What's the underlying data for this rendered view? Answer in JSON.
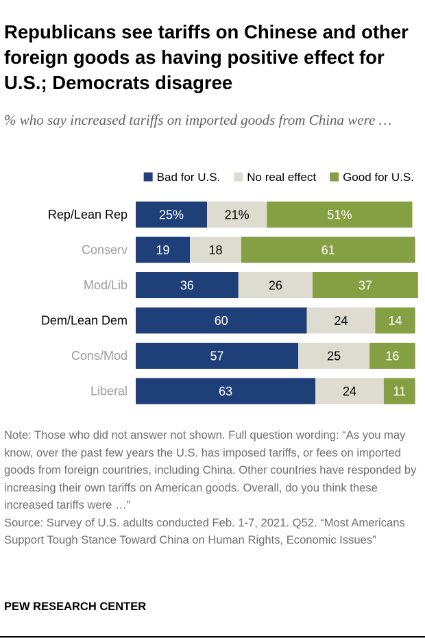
{
  "title": "Republicans see tariffs on Chinese and other foreign goods as having positive effect for U.S.; Democrats disagree",
  "subtitle": "% who say increased tariffs on imported goods from China were …",
  "note": "Note: Those who did not answer not shown. Full question wording: “As you may know, over the past few years the U.S. has imposed tariffs, or fees on imported goods from foreign countries, including China. Other countries have responded by increasing their own tariffs on American goods. Overall, do you think these increased tariffs were …”",
  "source": "Source: Survey of U.S. adults conducted Feb. 1-7, 2021. Q52. “Most Americans Support Tough Stance Toward China on Human Rights, Economic Issues”",
  "brand": "PEW RESEARCH CENTER",
  "chart_data": {
    "type": "bar",
    "orientation": "horizontal",
    "stacked": true,
    "title": "Republicans see tariffs on Chinese and other foreign goods as having positive effect for U.S.; Democrats disagree",
    "subtitle": "% who say increased tariffs on imported goods from China were …",
    "xlim": [
      0,
      100
    ],
    "grid": false,
    "legend_position": "top",
    "categories": [
      "Rep/Lean Rep",
      "Conserv",
      "Mod/Lib",
      "Dem/Lean Dem",
      "Cons/Mod",
      "Liberal"
    ],
    "category_emphasis": [
      true,
      false,
      false,
      true,
      false,
      false
    ],
    "series": [
      {
        "name": "Bad for U.S.",
        "color": "#1f3f78",
        "label_color": "#ffffff",
        "values": [
          25,
          19,
          36,
          60,
          57,
          63
        ],
        "labels": [
          "25%",
          "19",
          "36",
          "60",
          "57",
          "63"
        ]
      },
      {
        "name": "No real effect",
        "color": "#dedbd0",
        "label_color": "#000000",
        "values": [
          21,
          18,
          26,
          24,
          25,
          24
        ],
        "labels": [
          "21%",
          "18",
          "26",
          "24",
          "25",
          "24"
        ]
      },
      {
        "name": "Good for U.S.",
        "color": "#85a043",
        "label_color": "#ffffff",
        "values": [
          51,
          61,
          37,
          14,
          16,
          11
        ],
        "labels": [
          "51%",
          "61",
          "37",
          "14",
          "16",
          "11"
        ]
      }
    ],
    "colors": {
      "emphasis_label": "#000000",
      "muted_label": "#9c9c9c",
      "legend_text": "#000000"
    }
  }
}
